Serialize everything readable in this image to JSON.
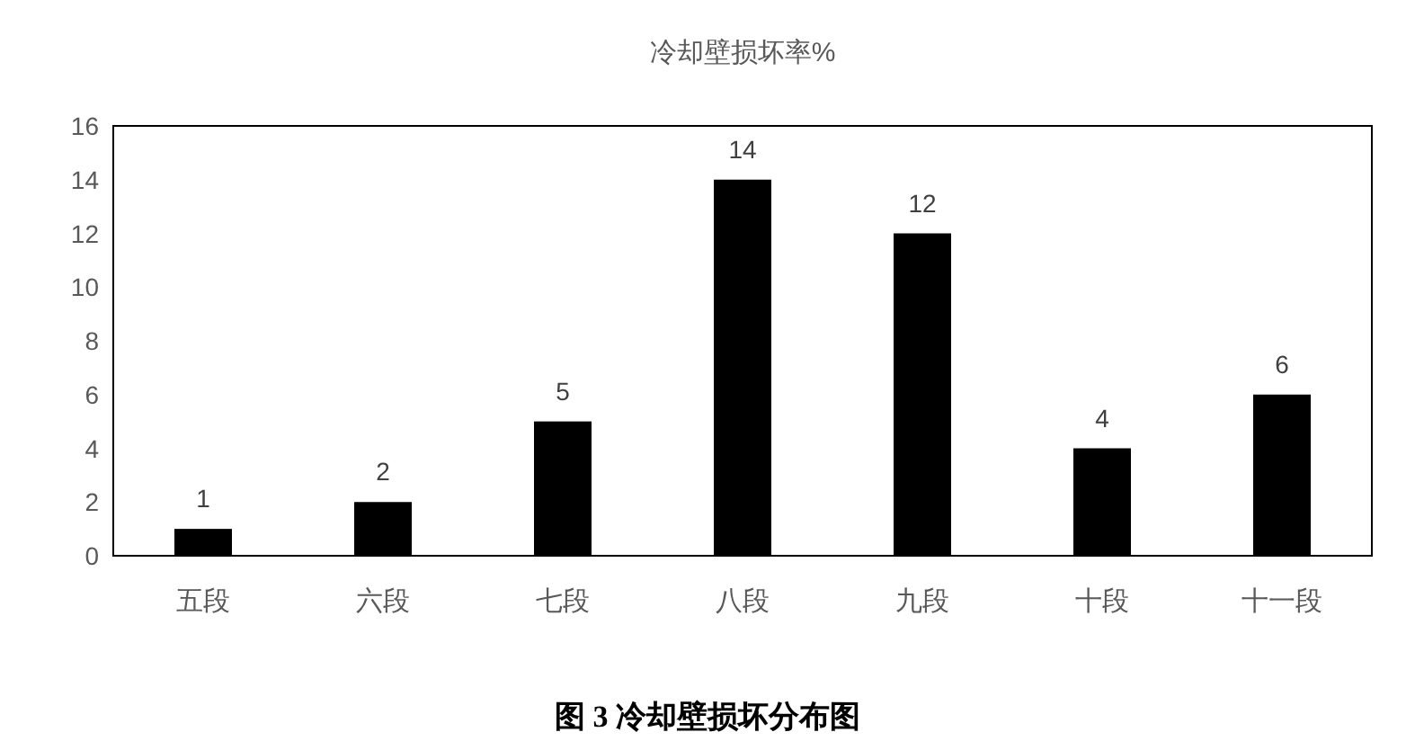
{
  "chart_data": {
    "type": "bar",
    "title": "冷却壁损坏率%",
    "categories": [
      "五段",
      "六段",
      "七段",
      "八段",
      "九段",
      "十段",
      "十一段"
    ],
    "values": [
      1,
      2,
      5,
      14,
      12,
      4,
      6
    ],
    "color": "#000000",
    "ylim": [
      0,
      16
    ],
    "yticks": [
      0,
      2,
      4,
      6,
      8,
      10,
      12,
      14,
      16
    ],
    "data_labels": true,
    "annotations": [
      "图 3  冷却壁损坏分布图"
    ]
  }
}
